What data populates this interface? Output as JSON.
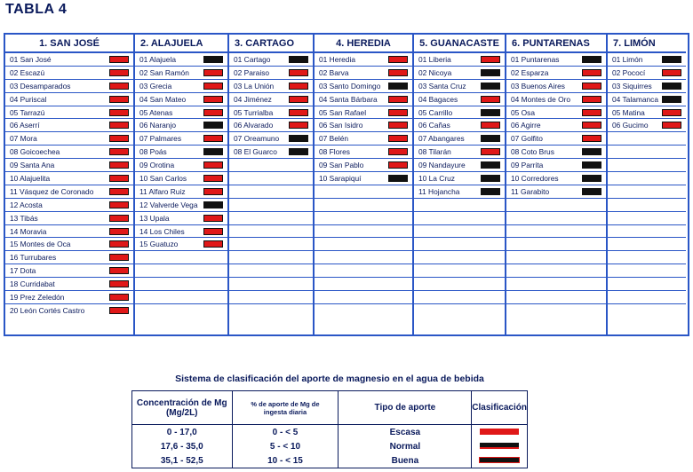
{
  "title": "TABLA 4",
  "provinces": [
    {
      "name": "1. SAN JOSÉ",
      "center": true,
      "items": [
        {
          "label": "01 San José",
          "level": "escasa"
        },
        {
          "label": "02 Escazú",
          "level": "escasa"
        },
        {
          "label": "03 Desamparados",
          "level": "escasa"
        },
        {
          "label": "04 Puriscal",
          "level": "escasa"
        },
        {
          "label": "05 Tarrazú",
          "level": "escasa"
        },
        {
          "label": "06 Aserrí",
          "level": "escasa"
        },
        {
          "label": "07 Mora",
          "level": "escasa"
        },
        {
          "label": "08 Goicoechea",
          "level": "escasa"
        },
        {
          "label": "09 Santa Ana",
          "level": "escasa"
        },
        {
          "label": "10 Alajuelita",
          "level": "escasa"
        },
        {
          "label": "11 Vásquez de Coronado",
          "level": "escasa"
        },
        {
          "label": "12 Acosta",
          "level": "escasa"
        },
        {
          "label": "13 Tibás",
          "level": "escasa"
        },
        {
          "label": "14 Moravia",
          "level": "escasa"
        },
        {
          "label": "15 Montes de Oca",
          "level": "escasa"
        },
        {
          "label": "16 Turrubares",
          "level": "escasa"
        },
        {
          "label": "17 Dota",
          "level": "escasa"
        },
        {
          "label": "18 Curridabat",
          "level": "escasa"
        },
        {
          "label": "19 Prez Zeledón",
          "level": "escasa"
        },
        {
          "label": "20 León Cortés Castro",
          "level": "escasa"
        }
      ]
    },
    {
      "name": "2. ALAJUELA",
      "center": false,
      "items": [
        {
          "label": "01 Alajuela",
          "level": "normal"
        },
        {
          "label": "02 San Ramón",
          "level": "escasa"
        },
        {
          "label": "03 Grecia",
          "level": "escasa"
        },
        {
          "label": "04 San Mateo",
          "level": "escasa"
        },
        {
          "label": "05 Atenas",
          "level": "escasa"
        },
        {
          "label": "06 Naranjo",
          "level": "normal"
        },
        {
          "label": "07 Palmares",
          "level": "escasa"
        },
        {
          "label": "08 Poás",
          "level": "normal"
        },
        {
          "label": "09 Orotina",
          "level": "escasa"
        },
        {
          "label": "10 San Carlos",
          "level": "escasa"
        },
        {
          "label": "11 Alfaro Ruiz",
          "level": "escasa"
        },
        {
          "label": "12 Valverde Vega",
          "level": "normal"
        },
        {
          "label": "13 Upala",
          "level": "escasa"
        },
        {
          "label": "14 Los Chiles",
          "level": "escasa"
        },
        {
          "label": "15 Guatuzo",
          "level": "escasa"
        }
      ]
    },
    {
      "name": "3. CARTAGO",
      "center": false,
      "items": [
        {
          "label": "01 Cartago",
          "level": "normal"
        },
        {
          "label": "02 Paraiso",
          "level": "escasa"
        },
        {
          "label": "03 La Unión",
          "level": "escasa"
        },
        {
          "label": "04 Jiménez",
          "level": "escasa"
        },
        {
          "label": "05 Turrialba",
          "level": "escasa"
        },
        {
          "label": "06 Alvarado",
          "level": "escasa"
        },
        {
          "label": "07 Oreamuno",
          "level": "normal"
        },
        {
          "label": "08 El Guarco",
          "level": "normal"
        }
      ]
    },
    {
      "name": "4. HEREDIA",
      "center": true,
      "items": [
        {
          "label": "01 Heredia",
          "level": "escasa"
        },
        {
          "label": "02 Barva",
          "level": "escasa"
        },
        {
          "label": "03 Santo Domingo",
          "level": "normal"
        },
        {
          "label": "04 Santa Bárbara",
          "level": "escasa"
        },
        {
          "label": "05 San Rafael",
          "level": "escasa"
        },
        {
          "label": "06 San Isidro",
          "level": "escasa"
        },
        {
          "label": "07 Belén",
          "level": "escasa"
        },
        {
          "label": "08 Flores",
          "level": "escasa"
        },
        {
          "label": "09 San Pablo",
          "level": "escasa"
        },
        {
          "label": "10 Sarapiquí",
          "level": "normal"
        }
      ]
    },
    {
      "name": "5. GUANACASTE",
      "center": true,
      "items": [
        {
          "label": "01 Liberia",
          "level": "escasa"
        },
        {
          "label": "02 Nicoya",
          "level": "normal"
        },
        {
          "label": "03 Santa Cruz",
          "level": "normal"
        },
        {
          "label": "04 Bagaces",
          "level": "escasa"
        },
        {
          "label": "05 Carrillo",
          "level": "normal"
        },
        {
          "label": "06 Cañas",
          "level": "escasa"
        },
        {
          "label": "07 Abangares",
          "level": "normal"
        },
        {
          "label": "08 Tilarán",
          "level": "escasa"
        },
        {
          "label": "09 Nandayure",
          "level": "normal"
        },
        {
          "label": "10 La Cruz",
          "level": "normal"
        },
        {
          "label": "11 Hojancha",
          "level": "normal"
        }
      ]
    },
    {
      "name": "6. PUNTARENAS",
      "center": false,
      "items": [
        {
          "label": "01 Puntarenas",
          "level": "normal"
        },
        {
          "label": "02 Esparza",
          "level": "escasa"
        },
        {
          "label": "03 Buenos Aires",
          "level": "escasa"
        },
        {
          "label": "04 Montes de Oro",
          "level": "escasa"
        },
        {
          "label": "05 Osa",
          "level": "escasa"
        },
        {
          "label": "06 Agirre",
          "level": "escasa"
        },
        {
          "label": "07 Golfito",
          "level": "escasa"
        },
        {
          "label": "08 Coto Brus",
          "level": "normal"
        },
        {
          "label": "09 Parrita",
          "level": "normal"
        },
        {
          "label": "10 Corredores",
          "level": "normal"
        },
        {
          "label": "11 Garabito",
          "level": "normal"
        }
      ]
    },
    {
      "name": "7. LIMÓN",
      "center": false,
      "items": [
        {
          "label": "01 Limón",
          "level": "normal"
        },
        {
          "label": "02 Pococí",
          "level": "escasa"
        },
        {
          "label": "03 Siquirres",
          "level": "normal"
        },
        {
          "label": "04 Talamanca",
          "level": "normal"
        },
        {
          "label": "05 Matina",
          "level": "escasa"
        },
        {
          "label": "06 Gucimo",
          "level": "escasa"
        }
      ]
    }
  ],
  "legend": {
    "title": "Sistema de clasificación del aporte de magnesio en el agua de bebida",
    "headers": [
      "Concentración de Mg  (Mg/2L)",
      "% de aporte de Mg de ingesta diaria",
      "Tipo de aporte",
      "Clasificación"
    ],
    "rows": [
      {
        "conc": "0 - 17,0",
        "pct": "0 - < 5",
        "tipo": "Escasa",
        "level": "escasa"
      },
      {
        "conc": "17,6 - 35,0",
        "pct": "5 - < 10",
        "tipo": "Normal",
        "level": "normal"
      },
      {
        "conc": "35,1 - 52,5",
        "pct": "10 - < 15",
        "tipo": "Buena",
        "level": "buena"
      }
    ]
  },
  "colors": {
    "border": "#2a56c6",
    "text": "#0a1a5c",
    "escasa": "#e01818",
    "normal": "#111111"
  }
}
